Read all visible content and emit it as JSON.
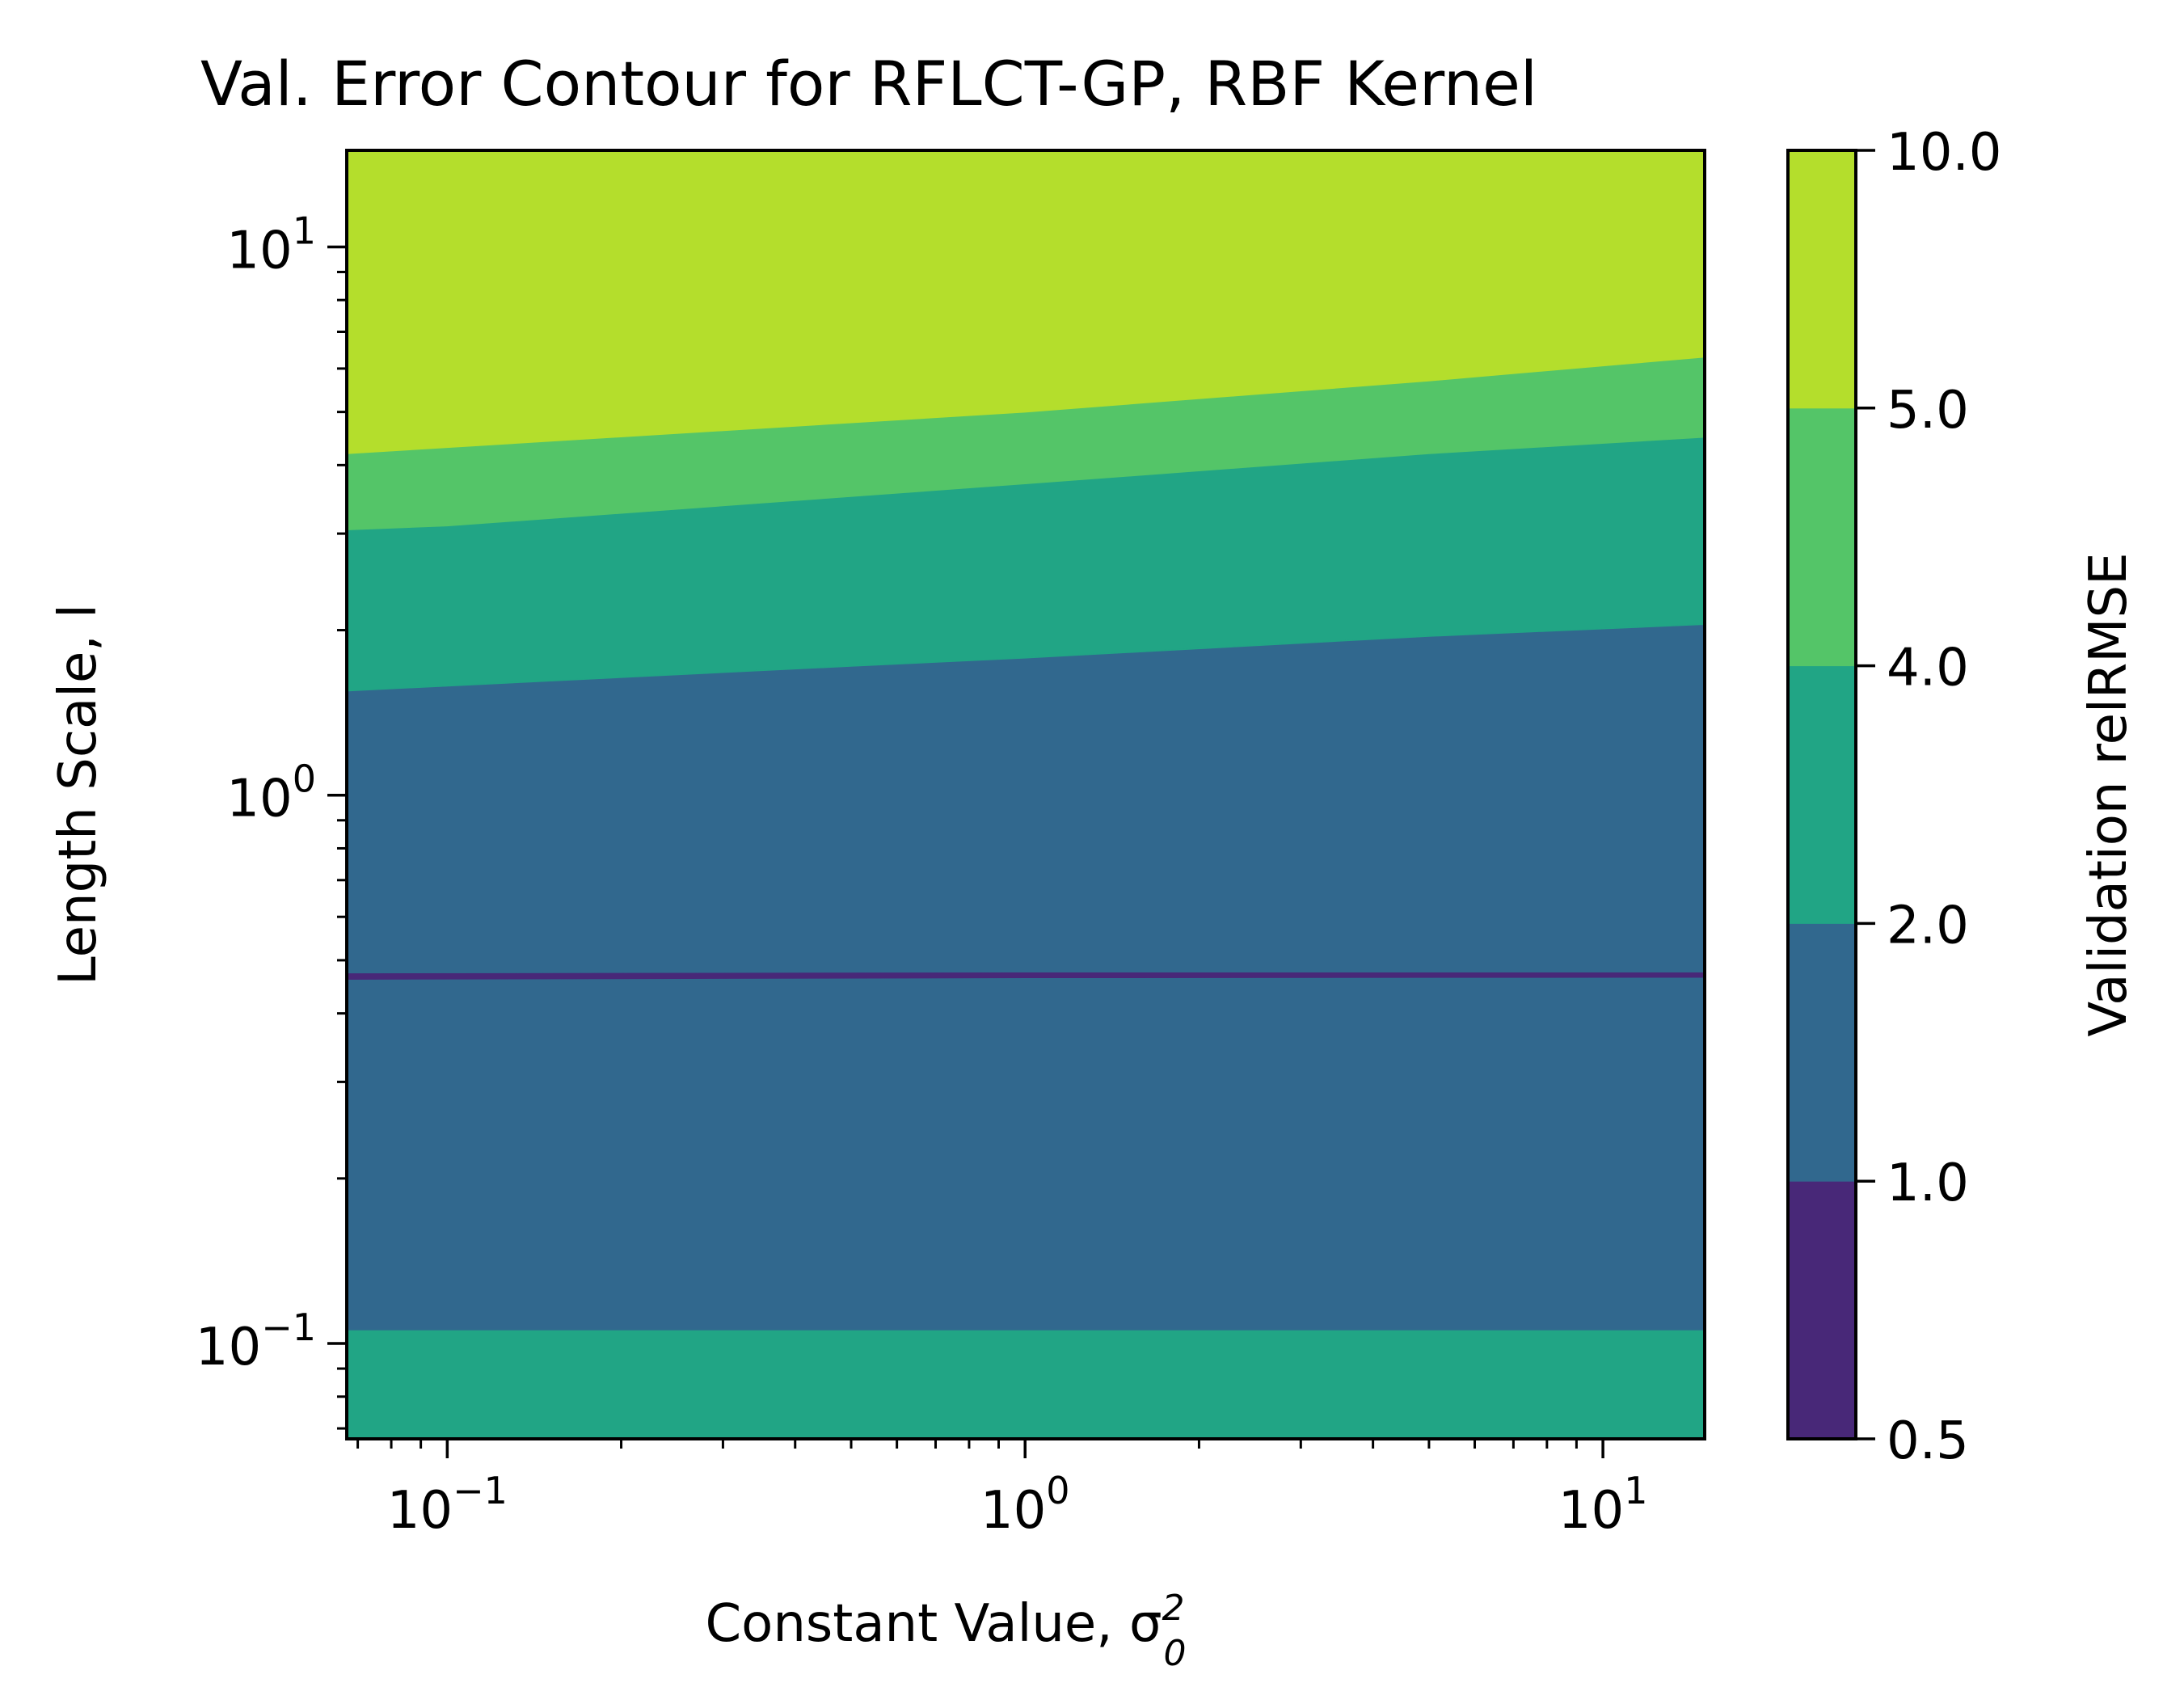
{
  "chart_data": {
    "type": "contour",
    "title": "Val. Error Contour for RFLCT-GP, RBF Kernel",
    "xlabel": "Constant Value, σ",
    "xlabel_sup": "2",
    "xlabel_sub": "0",
    "ylabel": "Length Scale, l",
    "xscale": "log",
    "yscale": "log",
    "xlim": [
      0.067,
      15
    ],
    "ylim": [
      0.067,
      15
    ],
    "x_ticks": [
      {
        "value": 0.1,
        "base": "10",
        "exp": "−1"
      },
      {
        "value": 1,
        "base": "10",
        "exp": "0"
      },
      {
        "value": 10,
        "base": "10",
        "exp": "1"
      }
    ],
    "y_ticks": [
      {
        "value": 0.1,
        "base": "10",
        "exp": "−1"
      },
      {
        "value": 1,
        "base": "10",
        "exp": "0"
      },
      {
        "value": 10,
        "base": "10",
        "exp": "1"
      }
    ],
    "levels": [
      0.5,
      1.0,
      2.0,
      4.0,
      5.0,
      10.0
    ],
    "colorbar": {
      "label": "Validation relRMSE",
      "tick_labels": [
        "0.5",
        "1.0",
        "2.0",
        "4.0",
        "5.0",
        "10.0"
      ],
      "colors": [
        "#482878",
        "#31688e",
        "#21a585",
        "#54c568",
        "#b4de2c"
      ]
    },
    "regions": [
      {
        "range": "2.0–4.0",
        "color": "#21a585",
        "lower": [
          [
            0.067,
            0.067
          ],
          [
            15,
            0.067
          ]
        ],
        "upper": [
          [
            0.067,
            0.106
          ],
          [
            15,
            0.106
          ]
        ]
      },
      {
        "range": "1.0–2.0",
        "color": "#31688e",
        "lower": [
          [
            0.067,
            0.106
          ],
          [
            15,
            0.106
          ]
        ],
        "upper": [
          [
            0.067,
            1.55
          ],
          [
            0.5,
            1.72
          ],
          [
            1,
            1.78
          ],
          [
            5,
            1.95
          ],
          [
            15,
            2.05
          ]
        ]
      },
      {
        "range": "0.5–1.0",
        "color": "#482878",
        "lower": [
          [
            0.067,
            0.462
          ],
          [
            1,
            0.465
          ],
          [
            15,
            0.466
          ]
        ],
        "upper": [
          [
            0.067,
            0.472
          ],
          [
            1,
            0.474
          ],
          [
            15,
            0.474
          ]
        ]
      },
      {
        "range": "2.0–4.0",
        "color": "#21a585",
        "lower": [
          [
            0.067,
            1.55
          ],
          [
            0.5,
            1.72
          ],
          [
            1,
            1.78
          ],
          [
            5,
            1.95
          ],
          [
            15,
            2.05
          ]
        ],
        "upper": [
          [
            0.067,
            3.05
          ],
          [
            0.1,
            3.1
          ],
          [
            1,
            3.7
          ],
          [
            5,
            4.2
          ],
          [
            15,
            4.5
          ]
        ]
      },
      {
        "range": "4.0–5.0",
        "color": "#54c568",
        "lower": [
          [
            0.067,
            3.05
          ],
          [
            0.1,
            3.1
          ],
          [
            1,
            3.7
          ],
          [
            5,
            4.2
          ],
          [
            15,
            4.5
          ]
        ],
        "upper": [
          [
            0.067,
            4.2
          ],
          [
            1,
            5.0
          ],
          [
            5,
            5.7
          ],
          [
            15,
            6.3
          ]
        ]
      },
      {
        "range": "5.0–10.0",
        "color": "#b4de2c",
        "lower": [
          [
            0.067,
            4.2
          ],
          [
            1,
            5.0
          ],
          [
            5,
            5.7
          ],
          [
            15,
            6.3
          ]
        ],
        "upper": [
          [
            0.067,
            15
          ],
          [
            15,
            15
          ]
        ]
      }
    ]
  }
}
